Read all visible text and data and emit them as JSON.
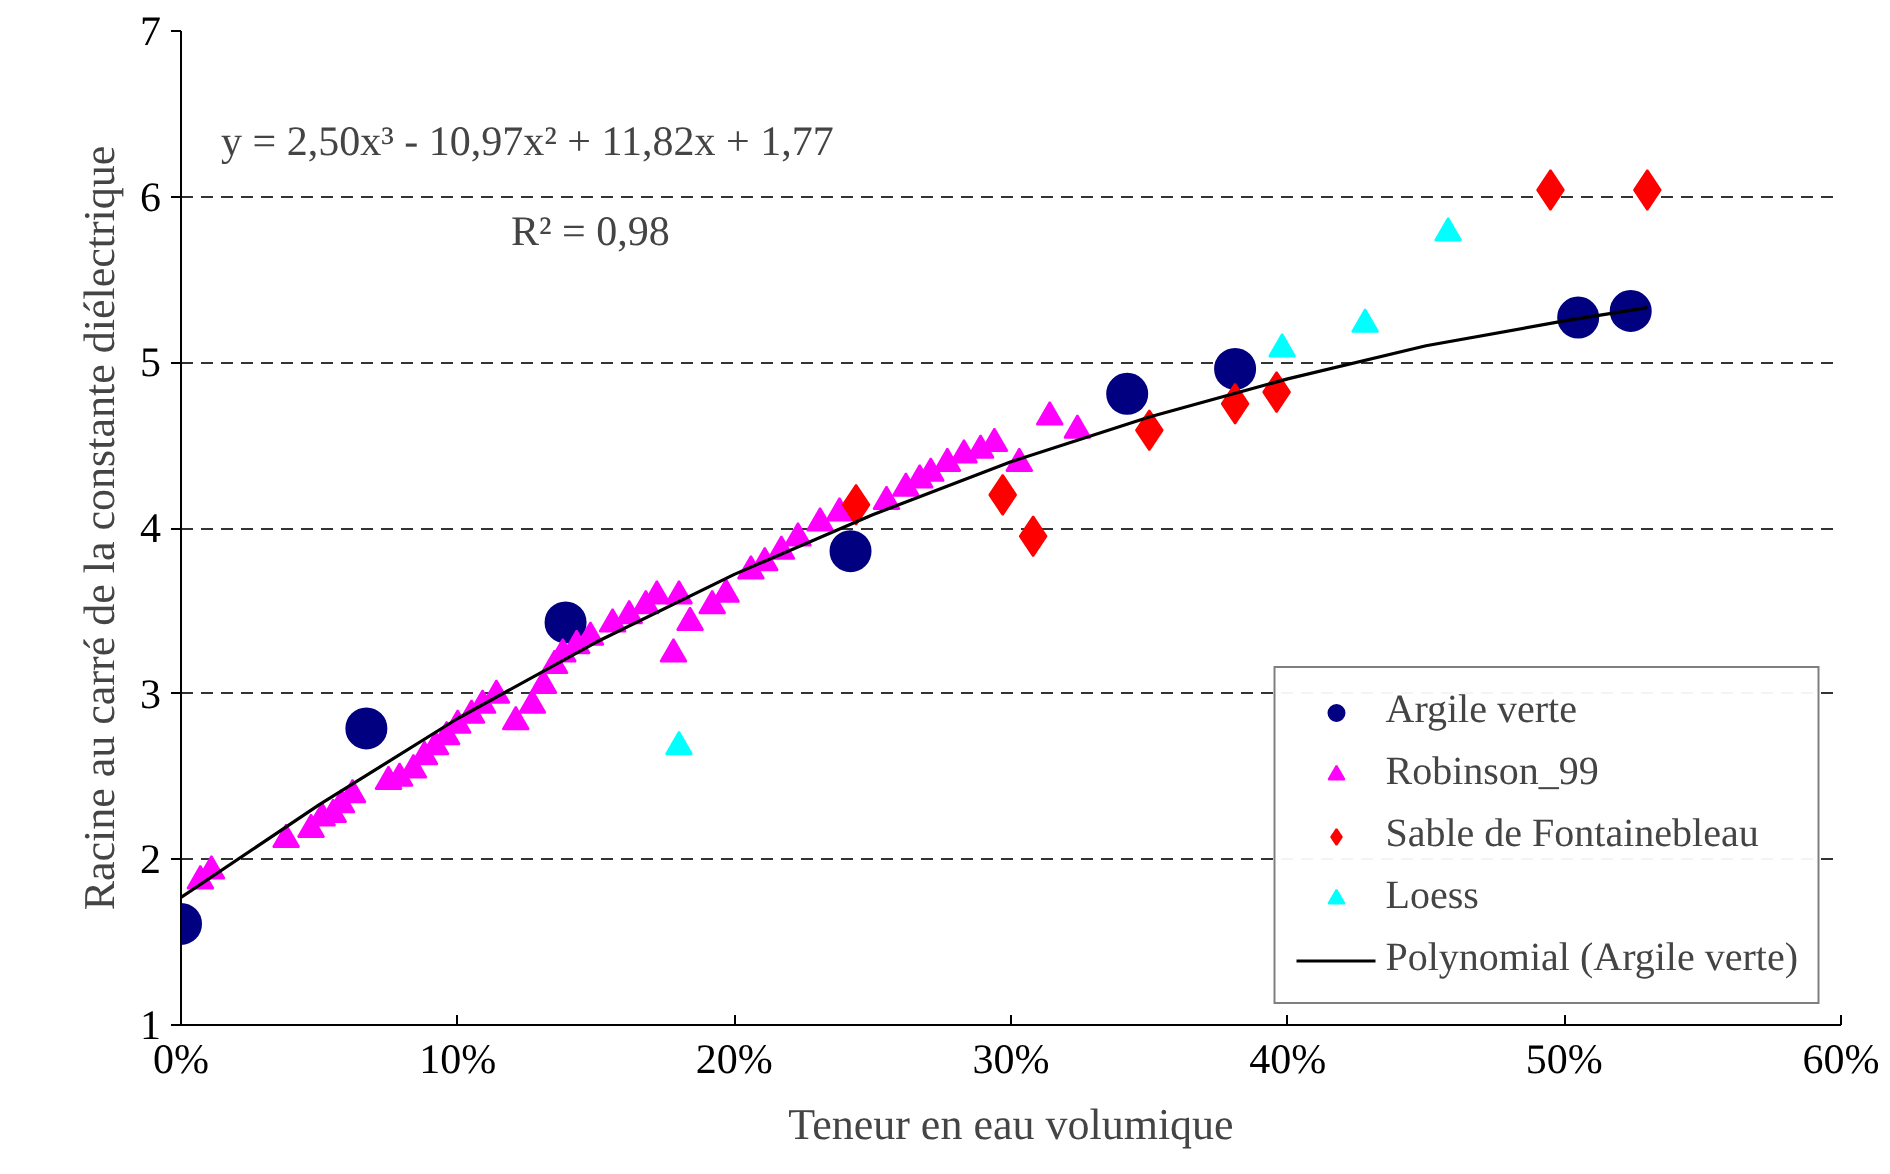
{
  "chart_data": {
    "type": "scatter",
    "xlabel": "Teneur en eau volumique",
    "ylabel": "Racine au carré de la constante diélectrique",
    "xlim": [
      0,
      0.6
    ],
    "ylim": [
      1,
      7
    ],
    "xticks": [
      {
        "value": 0,
        "label": "0%"
      },
      {
        "value": 0.1,
        "label": "10%"
      },
      {
        "value": 0.2,
        "label": "20%"
      },
      {
        "value": 0.3,
        "label": "30%"
      },
      {
        "value": 0.4,
        "label": "40%"
      },
      {
        "value": 0.5,
        "label": "50%"
      },
      {
        "value": 0.6,
        "label": "60%"
      }
    ],
    "yticks": [
      1,
      2,
      3,
      4,
      5,
      6,
      7
    ],
    "grid": "y",
    "legend": "bottom right",
    "annotations": [
      "y = 2,50x³ - 10,97x² + 11,82x + 1,77",
      "R² = 0,98"
    ],
    "series": [
      {
        "name": "Argile verte",
        "marker": "circle",
        "color": "#000080",
        "x": [
          0,
          0.067,
          0.139,
          0.242,
          0.342,
          0.381,
          0.505,
          0.524
        ],
        "values": [
          1.61,
          2.79,
          3.43,
          3.86,
          4.81,
          4.96,
          5.27,
          5.31
        ]
      },
      {
        "name": "Robinson_99",
        "marker": "triangle",
        "color": "#ff00ff",
        "x": [
          0.007,
          0.011,
          0.038,
          0.047,
          0.051,
          0.055,
          0.058,
          0.062,
          0.075,
          0.079,
          0.084,
          0.088,
          0.092,
          0.096,
          0.1,
          0.105,
          0.109,
          0.114,
          0.121,
          0.127,
          0.131,
          0.135,
          0.138,
          0.143,
          0.148,
          0.156,
          0.162,
          0.168,
          0.172,
          0.178,
          0.18,
          0.184,
          0.192,
          0.197,
          0.206,
          0.211,
          0.217,
          0.223,
          0.231,
          0.238,
          0.249,
          0.255,
          0.262,
          0.267,
          0.271,
          0.277,
          0.283,
          0.289,
          0.294,
          0.303,
          0.314,
          0.324
        ],
        "values": [
          1.87,
          1.93,
          2.12,
          2.18,
          2.25,
          2.27,
          2.33,
          2.39,
          2.47,
          2.49,
          2.54,
          2.62,
          2.68,
          2.74,
          2.81,
          2.87,
          2.93,
          2.99,
          2.83,
          2.93,
          3.05,
          3.17,
          3.24,
          3.29,
          3.34,
          3.42,
          3.47,
          3.53,
          3.59,
          3.24,
          3.59,
          3.43,
          3.53,
          3.6,
          3.74,
          3.79,
          3.86,
          3.94,
          4.03,
          4.09,
          null,
          4.16,
          4.24,
          4.29,
          4.33,
          4.39,
          4.44,
          4.47,
          4.51,
          4.39,
          4.67,
          4.59
        ]
      },
      {
        "name": "Sable de Fontainebleau",
        "marker": "diamond",
        "color": "#ff0000",
        "x": [
          0.244,
          0.297,
          0.308,
          0.35,
          0.381,
          0.396,
          0.495,
          0.53
        ],
        "values": [
          4.14,
          4.2,
          3.95,
          4.59,
          4.75,
          4.82,
          6.04,
          6.04
        ]
      },
      {
        "name": "Loess",
        "marker": "triangle",
        "color": "#00ffff",
        "x": [
          0.18,
          0.398,
          0.428,
          0.458
        ],
        "values": [
          2.68,
          5.08,
          5.23,
          5.78
        ]
      },
      {
        "name": "Polynomial (Argile verte)",
        "type": "line",
        "marker": "none",
        "line_style": "solid",
        "color": "#000000",
        "x": [
          0,
          0.05,
          0.1,
          0.15,
          0.2,
          0.25,
          0.3,
          0.35,
          0.4,
          0.45,
          0.5,
          0.53
        ],
        "values": [
          1.77,
          2.33,
          2.85,
          3.31,
          3.72,
          4.08,
          4.4,
          4.67,
          4.9,
          5.1,
          5.25,
          5.33
        ]
      }
    ]
  }
}
